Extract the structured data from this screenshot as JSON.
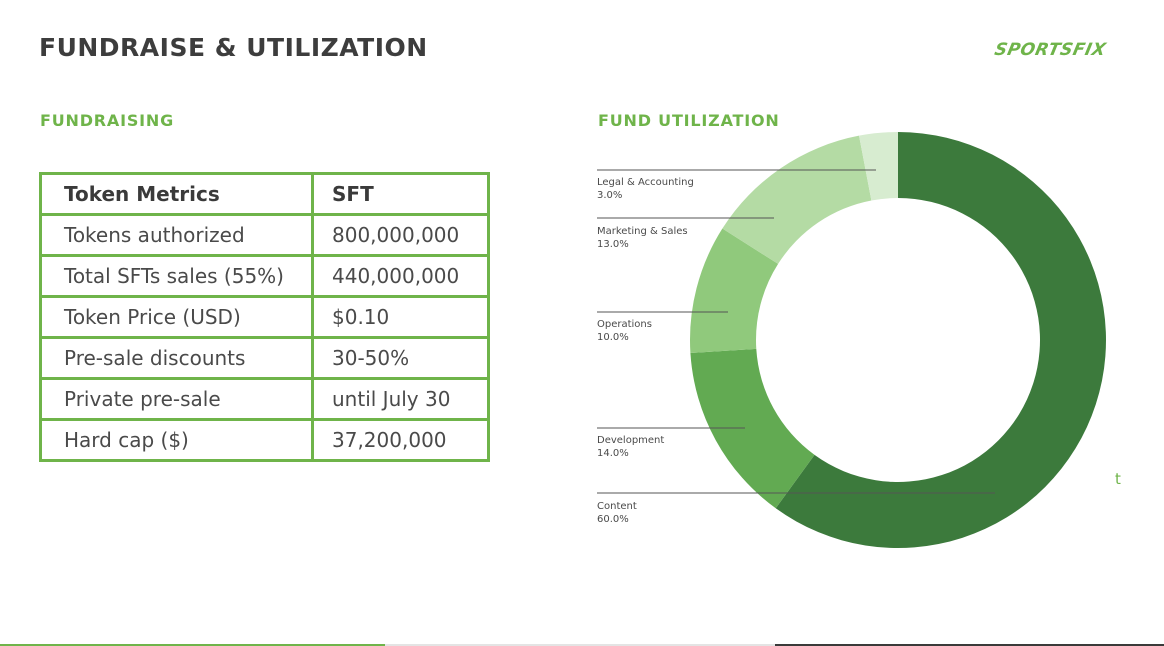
{
  "header": {
    "title": "FUNDRAISE & UTILIZATION",
    "logo_text": "SPORTSFIX"
  },
  "fundraising": {
    "title": "FUNDRAISING",
    "table": {
      "headers": [
        "Token Metrics",
        "SFT"
      ],
      "rows": [
        [
          "Tokens authorized",
          "800,000,000"
        ],
        [
          "Total SFTs sales (55%)",
          "440,000,000"
        ],
        [
          "Token Price (USD)",
          "$0.10"
        ],
        [
          "Pre-sale discounts",
          "30-50%"
        ],
        [
          "Private pre-sale",
          "until July 30"
        ],
        [
          "Hard cap ($)",
          "37,200,000"
        ]
      ]
    }
  },
  "utilization": {
    "title": "FUND UTILIZATION",
    "stray_text": "t"
  },
  "colors": {
    "accent": "#6fb44a",
    "title": "#3d3d3d",
    "slices": [
      "#3c7a3c",
      "#62aa52",
      "#90c97c",
      "#b4dba4",
      "#d7ecd0"
    ]
  },
  "chart_data": {
    "type": "pie",
    "donut": true,
    "title": "FUND UTILIZATION",
    "categories": [
      "Content",
      "Development",
      "Operations",
      "Marketing & Sales",
      "Legal & Accounting"
    ],
    "values": [
      60.0,
      14.0,
      10.0,
      13.0,
      3.0
    ],
    "labels": [
      "60.0%",
      "14.0%",
      "10.0%",
      "13.0%",
      "3.0%"
    ],
    "start": "12 o'clock",
    "direction": "clockwise",
    "legend": "left leader lines"
  }
}
